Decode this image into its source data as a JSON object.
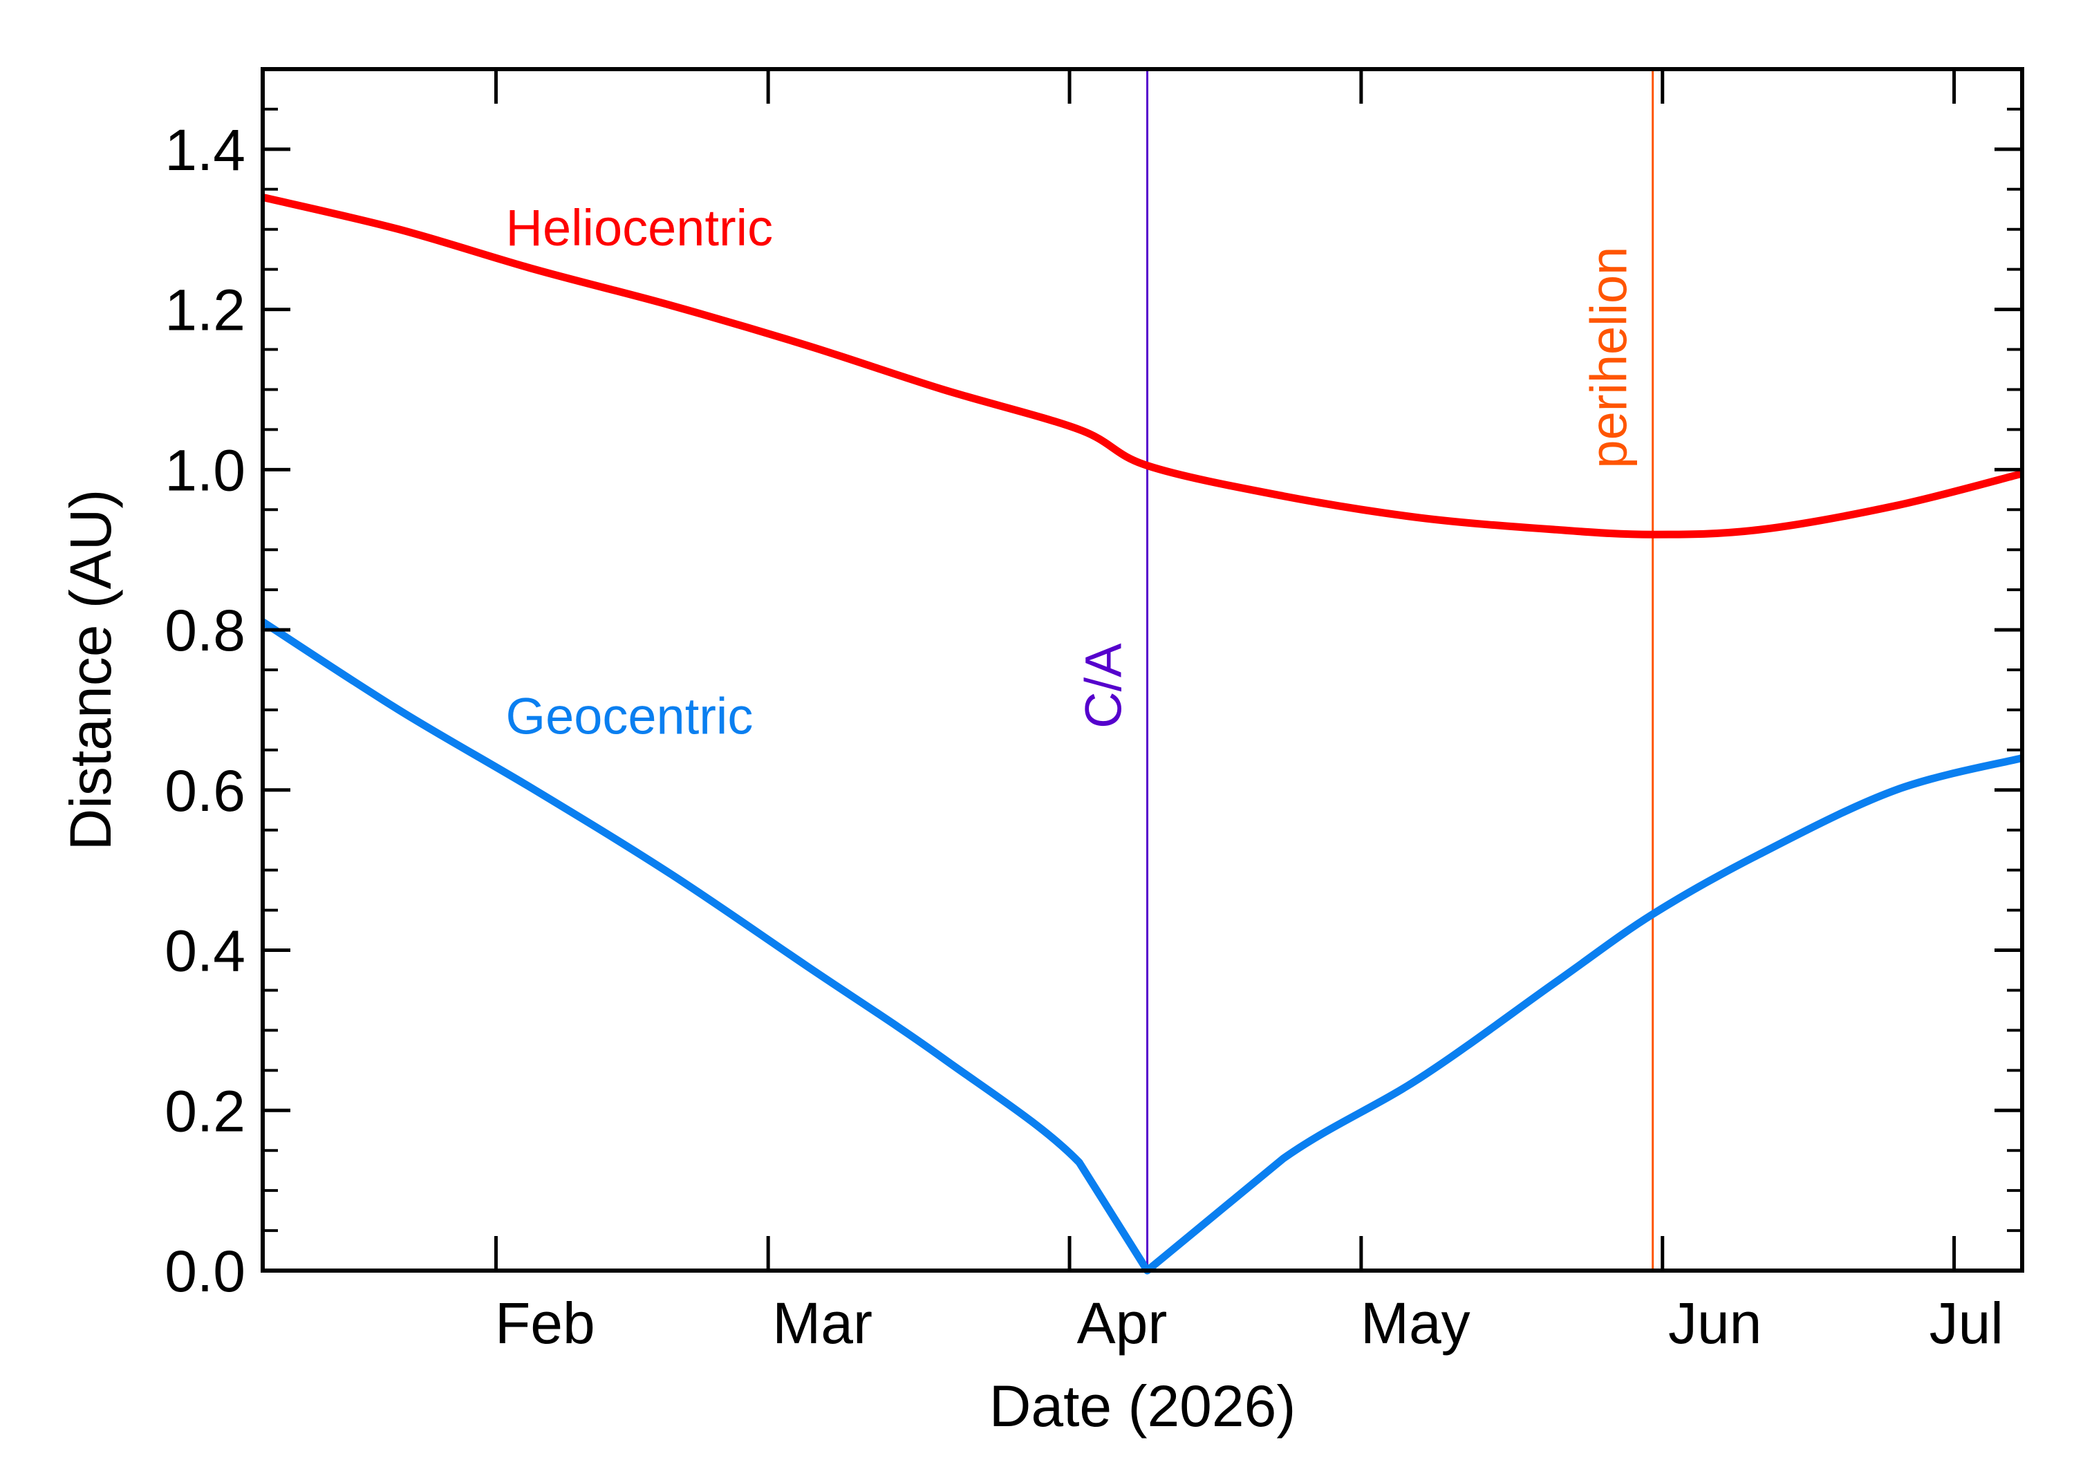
{
  "chart_data": {
    "type": "line",
    "xlabel": "Date (2026)",
    "ylabel": "Distance (AU)",
    "xlim": [
      "2026-01-07",
      "2026-07-07"
    ],
    "ylim": [
      0.0,
      1.5
    ],
    "grid": false,
    "x_ticks": [
      {
        "date": "2026-01-31",
        "label": "Feb"
      },
      {
        "date": "2026-02-28",
        "label": "Mar"
      },
      {
        "date": "2026-03-31",
        "label": "Apr"
      },
      {
        "date": "2026-04-30",
        "label": "May"
      },
      {
        "date": "2026-05-31",
        "label": "Jun"
      },
      {
        "date": "2026-06-30",
        "label": "Jul"
      }
    ],
    "y_ticks": [
      {
        "value": 0.0,
        "label": "0.0"
      },
      {
        "value": 0.2,
        "label": "0.2"
      },
      {
        "value": 0.4,
        "label": "0.4"
      },
      {
        "value": 0.6,
        "label": "0.6"
      },
      {
        "value": 0.8,
        "label": "0.8"
      },
      {
        "value": 1.0,
        "label": "1.0"
      },
      {
        "value": 1.2,
        "label": "1.2"
      },
      {
        "value": 1.4,
        "label": "1.4"
      }
    ],
    "series": [
      {
        "name": "Heliocentric",
        "color": "#ff0000",
        "label_at": {
          "date": "2026-02-01",
          "value": 1.28
        },
        "points": [
          {
            "date": "2026-01-07",
            "value": 1.34
          },
          {
            "date": "2026-01-21",
            "value": 1.3
          },
          {
            "date": "2026-02-04",
            "value": 1.25
          },
          {
            "date": "2026-02-18",
            "value": 1.205
          },
          {
            "date": "2026-03-04",
            "value": 1.155
          },
          {
            "date": "2026-03-18",
            "value": 1.1
          },
          {
            "date": "2026-04-01",
            "value": 1.05
          },
          {
            "date": "2026-04-08",
            "value": 1.005
          },
          {
            "date": "2026-04-22",
            "value": 0.967
          },
          {
            "date": "2026-05-06",
            "value": 0.94
          },
          {
            "date": "2026-05-20",
            "value": 0.925
          },
          {
            "date": "2026-05-30",
            "value": 0.919
          },
          {
            "date": "2026-06-10",
            "value": 0.925
          },
          {
            "date": "2026-06-24",
            "value": 0.955
          },
          {
            "date": "2026-07-07",
            "value": 0.995
          }
        ]
      },
      {
        "name": "Geocentric",
        "color": "#0a7ff0",
        "label_at": {
          "date": "2026-02-01",
          "value": 0.67
        },
        "points": [
          {
            "date": "2026-01-07",
            "value": 0.81
          },
          {
            "date": "2026-01-21",
            "value": 0.7
          },
          {
            "date": "2026-02-04",
            "value": 0.6
          },
          {
            "date": "2026-02-18",
            "value": 0.495
          },
          {
            "date": "2026-03-04",
            "value": 0.38
          },
          {
            "date": "2026-03-18",
            "value": 0.265
          },
          {
            "date": "2026-04-01",
            "value": 0.135
          },
          {
            "date": "2026-04-08",
            "value": 0.0
          },
          {
            "date": "2026-04-22",
            "value": 0.14
          },
          {
            "date": "2026-05-06",
            "value": 0.24
          },
          {
            "date": "2026-05-20",
            "value": 0.36
          },
          {
            "date": "2026-05-30",
            "value": 0.445
          },
          {
            "date": "2026-06-10",
            "value": 0.52
          },
          {
            "date": "2026-06-24",
            "value": 0.6
          },
          {
            "date": "2026-07-07",
            "value": 0.64
          }
        ]
      }
    ],
    "markers": [
      {
        "label": "C/A",
        "date": "2026-04-08",
        "color": "#5500cc",
        "label_value": 0.73
      },
      {
        "label": "perihelion",
        "date": "2026-05-30",
        "color": "#ff5500",
        "label_value": 1.14
      }
    ]
  }
}
